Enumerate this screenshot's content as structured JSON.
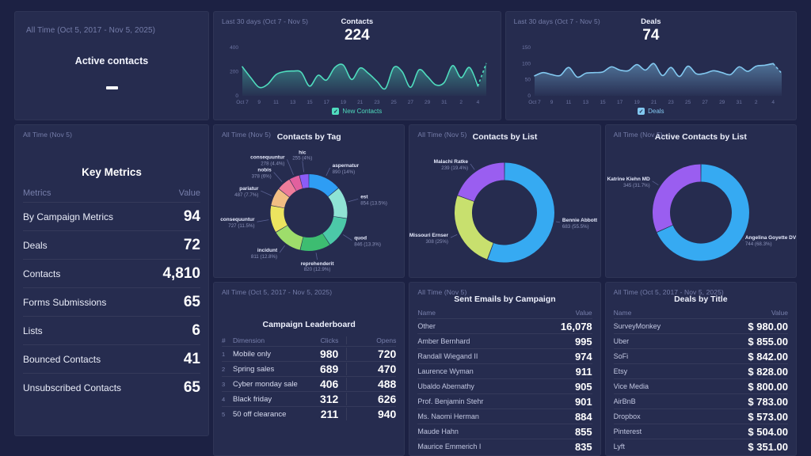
{
  "colors": {
    "page_bg": "#1c2143",
    "panel_bg": "#262c4f",
    "teal": "#4fdcbe",
    "light_blue": "#82c8f0",
    "muted": "#757da9"
  },
  "panels": {
    "active_contacts": {
      "period": "All Time (Oct 5, 2017 - Nov 5, 2025)",
      "title": "Active contacts",
      "value": "—"
    },
    "contacts_trend": {
      "period": "Last 30 days (Oct 7 - Nov 5)",
      "title": "Contacts",
      "value": "224",
      "legend": "New Contacts",
      "color": "#4fdcbe",
      "chart_data": {
        "type": "area",
        "title": "Contacts",
        "ylim": [
          0,
          400
        ],
        "y_ticks": [
          0,
          200,
          400
        ],
        "legend_position": "bottom",
        "x_labels": [
          "Oct 7",
          "9",
          "11",
          "13",
          "15",
          "17",
          "19",
          "21",
          "23",
          "25",
          "27",
          "29",
          "31",
          "2",
          "4"
        ],
        "series": [
          {
            "name": "New Contacts",
            "values": [
              240,
              150,
              70,
              95,
              175,
              200,
              205,
              195,
              80,
              170,
              130,
              235,
              255,
              135,
              230,
              185,
              120,
              60,
              235,
              200,
              70,
              215,
              160,
              90,
              110,
              250,
              150,
              235,
              80,
              270
            ]
          }
        ]
      }
    },
    "deals_trend": {
      "period": "Last 30 days (Oct 7 - Nov 5)",
      "title": "Deals",
      "value": "74",
      "legend": "Deals",
      "color": "#82c8f0",
      "chart_data": {
        "type": "area",
        "title": "Deals",
        "ylim": [
          0,
          150
        ],
        "y_ticks": [
          0,
          50,
          100,
          150
        ],
        "legend_position": "bottom",
        "x_labels": [
          "Oct 7",
          "9",
          "11",
          "13",
          "15",
          "17",
          "19",
          "21",
          "23",
          "25",
          "27",
          "29",
          "31",
          "2",
          "4"
        ],
        "series": [
          {
            "name": "Deals",
            "values": [
              62,
              72,
              66,
              63,
              88,
              58,
              70,
              72,
              74,
              90,
              80,
              78,
              97,
              80,
              100,
              63,
              88,
              60,
              92,
              68,
              70,
              78,
              72,
              66,
              90,
              76,
              92,
              95,
              100,
              70
            ]
          }
        ]
      }
    },
    "key_metrics": {
      "period": "All Time (Nov 5)",
      "title": "Key Metrics",
      "columns": [
        "Metrics",
        "Value"
      ],
      "rows": [
        [
          "By Campaign Metrics",
          "94"
        ],
        [
          "Deals",
          "72"
        ],
        [
          "Contacts",
          "4,810"
        ],
        [
          "Forms Submissions",
          "65"
        ],
        [
          "Lists",
          "6"
        ],
        [
          "Bounced Contacts",
          "41"
        ],
        [
          "Unsubscribed Contacts",
          "65"
        ]
      ]
    },
    "contacts_by_tag": {
      "period": "All Time (Nov 5)",
      "title": "Contacts by Tag",
      "chart_data": {
        "type": "pie",
        "donut": true,
        "r": 40,
        "ring": 17,
        "dy": 4,
        "slices": [
          {
            "name": "aspernatur",
            "value": 890,
            "label": "890 (14%)",
            "pct": 14,
            "color": "#2e9df4",
            "ext": 2
          },
          {
            "name": "est",
            "value": 854,
            "label": "854 (13.5%)",
            "pct": 13.5,
            "color": "#8fe3d4",
            "ext": 4
          },
          {
            "name": "quod",
            "value": 846,
            "label": "846 (13.3%)",
            "pct": 13.3,
            "color": "#4cc9a8",
            "ext": 4
          },
          {
            "name": "reprehenderit",
            "value": 820,
            "label": "820 (12.9%)",
            "pct": 12.9,
            "color": "#3dbd71",
            "ext": 0
          },
          {
            "name": "incidunt",
            "value": 811,
            "label": "811 (12.8%)",
            "pct": 12.8,
            "color": "#9edd6b",
            "ext": 2
          },
          {
            "name": "consequuntur",
            "value": 727,
            "label": "727 (11.5%)",
            "pct": 11.5,
            "color": "#ece45f",
            "ext": 6
          },
          {
            "name": "pariatur",
            "value": 487,
            "label": "487 (7.7%)",
            "pct": 7.7,
            "color": "#f1be83",
            "ext": 6
          },
          {
            "name": "nobis",
            "value": 378,
            "label": "378 (6%)",
            "pct": 6,
            "color": "#ef7d9b",
            "ext": 7
          },
          {
            "name": "consequuntur",
            "value": 278,
            "label": "278 (4.4%)",
            "pct": 4.4,
            "color": "#e2609e",
            "ext": 12
          },
          {
            "name": "hic",
            "value": 255,
            "label": "255 (4%)",
            "pct": 4,
            "color": "#8c5cf6",
            "ext": 5
          }
        ]
      }
    },
    "contacts_by_list": {
      "period": "All Time (Nov 5)",
      "title": "Contacts by List",
      "chart_data": {
        "type": "pie",
        "donut": true,
        "r": 52,
        "ring": 22,
        "dy": 4,
        "slices": [
          {
            "name": "Bennie Abbott",
            "value": 683,
            "label": "683 (55.5%)",
            "pct": 55.5,
            "color": "#36aaf2",
            "ext": -4
          },
          {
            "name": "Missouri Ernser",
            "value": 308,
            "label": "308 (25%)",
            "pct": 25,
            "color": "#c8e06e",
            "ext": 0
          },
          {
            "name": "Malachi Ratke",
            "value": 239,
            "label": "239 (19.4%)",
            "pct": 19.4,
            "color": "#9a5ef0",
            "ext": 0
          }
        ]
      }
    },
    "active_contacts_by_list": {
      "period": "All Time (Nov 5)",
      "title": "Active Contacts by List",
      "chart_data": {
        "type": "pie",
        "donut": true,
        "r": 50,
        "ring": 22,
        "dy": 4,
        "slices": [
          {
            "name": "Angelina Goyette DVM",
            "value": 744,
            "label": "744 (68.3%)",
            "pct": 68.3,
            "color": "#36aaf2",
            "ext": -10
          },
          {
            "name": "Katrine Kiehn MD",
            "value": 345,
            "label": "345 (31.7%)",
            "pct": 31.7,
            "color": "#9a5ef0",
            "ext": 0
          }
        ]
      }
    },
    "campaign_leaderboard": {
      "period": "All Time (Oct 5, 2017 - Nov 5, 2025)",
      "title": "Campaign Leaderboard",
      "columns": [
        "#",
        "Dimension",
        "Clicks",
        "Opens"
      ],
      "rows": [
        [
          "1",
          "Mobile only",
          "980",
          "720"
        ],
        [
          "2",
          "Spring sales",
          "689",
          "470"
        ],
        [
          "3",
          "Cyber monday sale",
          "406",
          "488"
        ],
        [
          "4",
          "Black friday",
          "312",
          "626"
        ],
        [
          "5",
          "50 off clearance",
          "211",
          "940"
        ]
      ]
    },
    "sent_emails": {
      "period": "All Time (Nov 5)",
      "title": "Sent Emails by Campaign",
      "columns": [
        "Name",
        "Value"
      ],
      "rows": [
        [
          "Other",
          "16,078"
        ],
        [
          "Amber Bernhard",
          "995"
        ],
        [
          "Randall Wiegand II",
          "974"
        ],
        [
          "Laurence Wyman",
          "911"
        ],
        [
          "Ubaldo Abernathy",
          "905"
        ],
        [
          "Prof. Benjamin Stehr",
          "901"
        ],
        [
          "Ms. Naomi Herman",
          "884"
        ],
        [
          "Maude Hahn",
          "855"
        ],
        [
          "Maurice Emmerich I",
          "835"
        ]
      ]
    },
    "deals_by_title": {
      "period": "All Time (Oct 5, 2017 - Nov 5, 2025)",
      "title": "Deals by Title",
      "columns": [
        "Name",
        "Value"
      ],
      "rows": [
        [
          "SurveyMonkey",
          "$ 980.00"
        ],
        [
          "Uber",
          "$ 855.00"
        ],
        [
          "SoFi",
          "$ 842.00"
        ],
        [
          "Etsy",
          "$ 828.00"
        ],
        [
          "Vice Media",
          "$ 800.00"
        ],
        [
          "AirBnB",
          "$ 783.00"
        ],
        [
          "Dropbox",
          "$ 573.00"
        ],
        [
          "Pinterest",
          "$ 504.00"
        ],
        [
          "Lyft",
          "$ 351.00"
        ]
      ]
    }
  }
}
